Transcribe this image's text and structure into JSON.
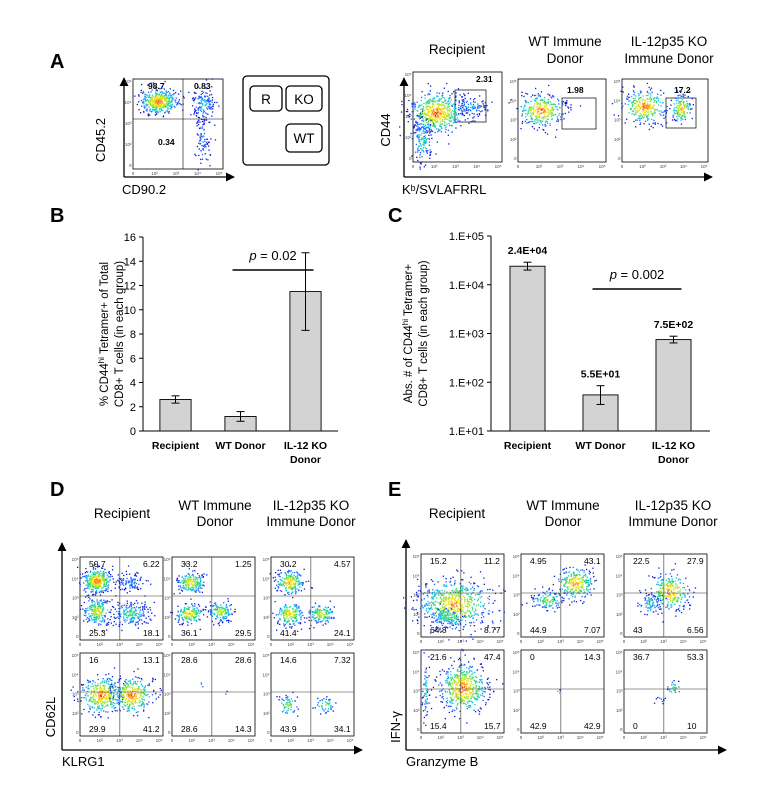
{
  "figure": {
    "panels": [
      "A",
      "B",
      "C",
      "D",
      "E"
    ],
    "flow_tick_labels": [
      "10⁵",
      "10⁴",
      "10³",
      "10²",
      "0"
    ],
    "panel_a": {
      "plot1": {
        "xlabel": "CD90.2",
        "ylabel": "CD45.2",
        "quadrants": {
          "tl": "98.7",
          "tr": "0.83",
          "bl": "0.34"
        }
      },
      "schematic": {
        "r": "R",
        "ko": "KO",
        "wt": "WT"
      },
      "tetramer": {
        "xlabel": "Kᵇ/SVLAFRRL",
        "ylabel": "CD44",
        "plots": [
          {
            "title": "Recipient",
            "gate": "2.31"
          },
          {
            "title": "WT Immune Donor",
            "gate": "1.98"
          },
          {
            "title": "IL-12p35 KO Immune Donor",
            "gate": "17.2"
          }
        ]
      }
    },
    "panel_d": {
      "xlabel": "KLRG1",
      "ylabel": "CD62L",
      "titles": [
        "Recipient",
        "WT Immune Donor",
        "IL-12p35 KO Immune Donor"
      ],
      "plots": [
        {
          "tl": "50.7",
          "tr": "6.22",
          "bl": "25.3",
          "br": "18.1"
        },
        {
          "tl": "33.2",
          "tr": "1.25",
          "bl": "36.1",
          "br": "29.5"
        },
        {
          "tl": "30.2",
          "tr": "4.57",
          "bl": "41.4",
          "br": "24.1"
        },
        {
          "tl": "16",
          "tr": "13.1",
          "bl": "29.9",
          "br": "41.2"
        },
        {
          "tl": "28.6",
          "tr": "28.6",
          "bl": "28.6",
          "br": "14.3"
        },
        {
          "tl": "14.6",
          "tr": "7.32",
          "bl": "43.9",
          "br": "34.1"
        }
      ]
    },
    "panel_e": {
      "xlabel": "Granzyme B",
      "ylabel": "IFN-γ",
      "titles": [
        "Recipient",
        "WT Immune Donor",
        "IL-12p35 KO Immune Donor"
      ],
      "plots": [
        {
          "tl": "15.2",
          "tr": "11.2",
          "bl": "64.8",
          "br": "8.77"
        },
        {
          "tl": "4.95",
          "tr": "43.1",
          "bl": "44.9",
          "br": "7.07"
        },
        {
          "tl": "22.5",
          "tr": "27.9",
          "bl": "43",
          "br": "6.56"
        },
        {
          "tl": "21.6",
          "tr": "47.4",
          "bl": "15.4",
          "br": "15.7"
        },
        {
          "tl": "0",
          "tr": "14.3",
          "bl": "42.9",
          "br": "42.9"
        },
        {
          "tl": "36.7",
          "tr": "53.3",
          "bl": "0",
          "br": "10"
        }
      ]
    }
  },
  "chart_data": [
    {
      "type": "bar",
      "panel": "B",
      "categories": [
        "Recipient",
        "WT Donor",
        "IL-12 KO Donor"
      ],
      "values": [
        2.6,
        1.2,
        11.5
      ],
      "errors": [
        0.3,
        0.4,
        3.2
      ],
      "ylabel": "% CD44hi Tetramer+ of Total CD8+ T cells (in each group)",
      "ylabel_line1_pre": "% CD44",
      "ylabel_sup": "hi",
      "ylabel_line1_post": " Tetramer+ of Total",
      "ylabel_line2": "CD8+ T cells (in each group)",
      "ylim": [
        0,
        16
      ],
      "yticks": [
        0,
        2,
        4,
        6,
        8,
        10,
        12,
        14,
        16
      ],
      "annotation": {
        "text_pre": "p",
        "text_post": " = 0.02",
        "between": [
          "WT Donor",
          "IL-12 KO Donor"
        ]
      },
      "bar_color": "#d3d3d3"
    },
    {
      "type": "bar",
      "panel": "C",
      "log_scale": true,
      "categories": [
        "Recipient",
        "WT Donor",
        "IL-12 KO Donor"
      ],
      "values": [
        24000,
        55,
        750
      ],
      "errors_low": [
        20000,
        35,
        640
      ],
      "errors_high": [
        29000,
        85,
        880
      ],
      "data_labels": [
        "2.4E+04",
        "5.5E+01",
        "7.5E+02"
      ],
      "ylabel": "Abs. # of CD44hi Tetramer+ CD8+ T cells (in each group)",
      "ylabel_line1_pre": "Abs. # of CD44",
      "ylabel_sup": "hi",
      "ylabel_line1_post": " Tetramer+",
      "ylabel_line2": "CD8+ T cells (in each group)",
      "ylim": [
        10,
        100000
      ],
      "ytick_labels": [
        "1.E+01",
        "1.E+02",
        "1.E+03",
        "1.E+04",
        "1.E+05"
      ],
      "annotation": {
        "text_pre": "p",
        "text_post": " = 0.002",
        "between": [
          "WT Donor",
          "IL-12 KO Donor"
        ]
      },
      "bar_color": "#d3d3d3"
    }
  ]
}
